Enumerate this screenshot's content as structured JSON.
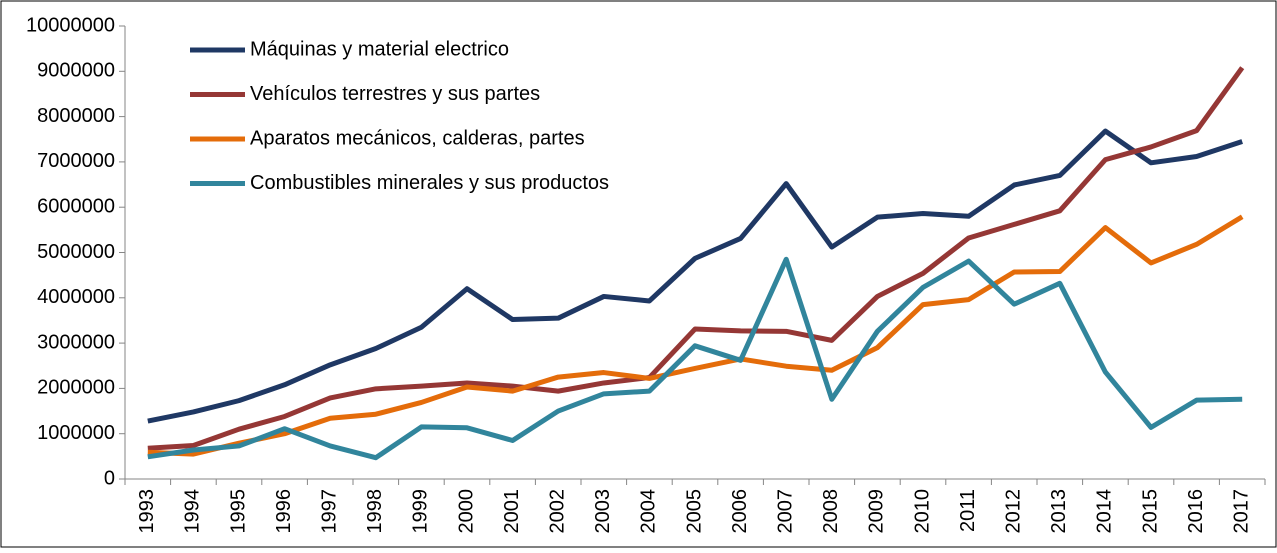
{
  "chart_data": {
    "type": "line",
    "categories": [
      "1993",
      "1994",
      "1995",
      "1996",
      "1997",
      "1998",
      "1999",
      "2000",
      "2001",
      "2002",
      "2003",
      "2004",
      "2005",
      "2006",
      "2007",
      "2008",
      "2009",
      "2010",
      "2011",
      "2012",
      "2013",
      "2014",
      "2015",
      "2016",
      "2017"
    ],
    "series": [
      {
        "name": "Máquinas y material electrico",
        "color": "#1f3864",
        "values": [
          1280000,
          1480000,
          1730000,
          2080000,
          2520000,
          2880000,
          3350000,
          4200000,
          3520000,
          3550000,
          4030000,
          3930000,
          4870000,
          5310000,
          6520000,
          5120000,
          5780000,
          5860000,
          5800000,
          6490000,
          6700000,
          7680000,
          6980000,
          7120000,
          7450000
        ]
      },
      {
        "name": "Vehículos terrestres y sus partes",
        "color": "#953735",
        "values": [
          680000,
          740000,
          1100000,
          1380000,
          1790000,
          1990000,
          2050000,
          2120000,
          2050000,
          1940000,
          2120000,
          2240000,
          3310000,
          3270000,
          3260000,
          3060000,
          4030000,
          4540000,
          5320000,
          5620000,
          5920000,
          7050000,
          7330000,
          7690000,
          9080000
        ]
      },
      {
        "name": "Aparatos mecánicos, calderas, partes",
        "color": "#e46c0a",
        "values": [
          590000,
          550000,
          790000,
          1000000,
          1340000,
          1430000,
          1690000,
          2030000,
          1940000,
          2250000,
          2350000,
          2220000,
          2440000,
          2650000,
          2490000,
          2400000,
          2900000,
          3850000,
          3960000,
          4570000,
          4580000,
          5550000,
          4770000,
          5180000,
          5790000
        ]
      },
      {
        "name": "Combustibles minerales y sus productos",
        "color": "#31859c",
        "values": [
          490000,
          640000,
          730000,
          1110000,
          730000,
          470000,
          1150000,
          1130000,
          850000,
          1500000,
          1880000,
          1940000,
          2940000,
          2620000,
          4850000,
          1760000,
          3260000,
          4230000,
          4810000,
          3860000,
          4320000,
          2360000,
          1140000,
          1740000,
          1760000
        ]
      }
    ],
    "ylim": [
      0,
      10000000
    ],
    "yticks": [
      0,
      1000000,
      2000000,
      3000000,
      4000000,
      5000000,
      6000000,
      7000000,
      8000000,
      9000000,
      10000000
    ],
    "legend": "upper left"
  }
}
